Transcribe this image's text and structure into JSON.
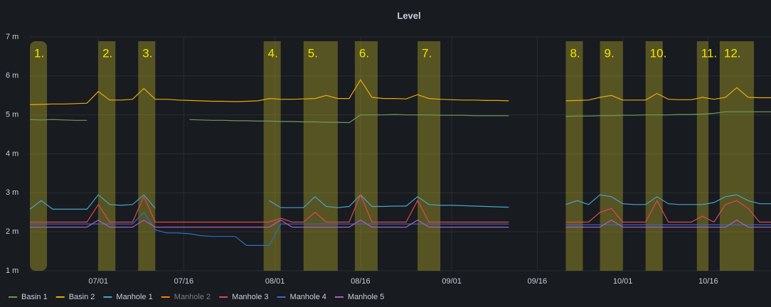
{
  "chart_data": {
    "type": "line",
    "title": "Level",
    "x": [
      "06/19",
      "06/21",
      "06/23",
      "06/25",
      "06/27",
      "06/29",
      "07/01",
      "07/03",
      "07/05",
      "07/07",
      "07/09",
      "07/11",
      "07/13",
      "07/15",
      "07/17",
      "07/19",
      "07/21",
      "07/23",
      "07/25",
      "07/27",
      "07/29",
      "07/31",
      "08/02",
      "08/04",
      "08/06",
      "08/08",
      "08/10",
      "08/12",
      "08/14",
      "08/16",
      "08/18",
      "08/20",
      "08/22",
      "08/24",
      "08/26",
      "08/28",
      "08/30",
      "09/01",
      "09/03",
      "09/05",
      "09/07",
      "09/09",
      "09/11",
      "09/13",
      "09/15",
      "09/17",
      "09/19",
      "09/21",
      "09/23",
      "09/25",
      "09/27",
      "09/29",
      "10/01",
      "10/03",
      "10/05",
      "10/07",
      "10/09",
      "10/11",
      "10/13",
      "10/15",
      "10/17",
      "10/19",
      "10/21",
      "10/23",
      "10/25",
      "10/27"
    ],
    "xlim": [
      "06/19",
      "10/27"
    ],
    "xticks": [
      "07/01",
      "07/16",
      "08/01",
      "08/16",
      "09/01",
      "09/16",
      "10/01",
      "10/16"
    ],
    "ylim": [
      1,
      7
    ],
    "yticks": [
      {
        "value": 1,
        "label": "1 m"
      },
      {
        "value": 2,
        "label": "2 m"
      },
      {
        "value": 3,
        "label": "3 m"
      },
      {
        "value": 4,
        "label": "4 m"
      },
      {
        "value": 5,
        "label": "5 m"
      },
      {
        "value": 6,
        "label": "6 m"
      },
      {
        "value": 7,
        "label": "7 m"
      }
    ],
    "grid": true,
    "legend": "bottom",
    "regions": [
      {
        "label": "1.",
        "from": "06/19",
        "to": "06/22"
      },
      {
        "label": "2.",
        "from": "07/01",
        "to": "07/04"
      },
      {
        "label": "3.",
        "from": "07/08",
        "to": "07/11"
      },
      {
        "label": "4.",
        "from": "07/30",
        "to": "08/02"
      },
      {
        "label": "5.",
        "from": "08/06",
        "to": "08/12"
      },
      {
        "label": "6.",
        "from": "08/15",
        "to": "08/19"
      },
      {
        "label": "7.",
        "from": "08/26",
        "to": "08/30"
      },
      {
        "label": "8.",
        "from": "09/21",
        "to": "09/24"
      },
      {
        "label": "9.",
        "from": "09/27",
        "to": "10/01"
      },
      {
        "label": "10.",
        "from": "10/05",
        "to": "10/08"
      },
      {
        "label": "11.",
        "from": "10/14",
        "to": "10/16"
      },
      {
        "label": "12.",
        "from": "10/18",
        "to": "10/24"
      }
    ],
    "series": [
      {
        "name": "Basin 1",
        "color": "#6f9a5d",
        "values": [
          4.88,
          4.87,
          4.88,
          4.87,
          4.86,
          4.86,
          null,
          null,
          null,
          null,
          null,
          null,
          null,
          null,
          4.88,
          4.87,
          4.86,
          4.86,
          4.85,
          4.85,
          4.84,
          4.84,
          4.83,
          4.83,
          4.82,
          4.82,
          4.81,
          4.81,
          4.8,
          5.0,
          5.0,
          5.0,
          5.01,
          5.0,
          5.0,
          5.0,
          4.99,
          4.99,
          4.99,
          4.98,
          4.98,
          4.98,
          4.98,
          null,
          null,
          null,
          null,
          4.96,
          4.97,
          4.97,
          4.98,
          4.98,
          4.99,
          4.99,
          5.0,
          5.0,
          5.0,
          5.01,
          5.01,
          5.02,
          5.04,
          5.08,
          5.08,
          5.08,
          5.08,
          5.08
        ]
      },
      {
        "name": "Basin 2",
        "color": "#e5ac0e",
        "values": [
          5.26,
          5.27,
          5.28,
          5.28,
          5.29,
          5.3,
          5.6,
          5.38,
          5.38,
          5.4,
          5.68,
          5.4,
          5.4,
          5.38,
          5.37,
          5.36,
          5.35,
          5.35,
          5.34,
          5.35,
          5.36,
          5.42,
          5.4,
          5.4,
          5.41,
          5.42,
          5.5,
          5.42,
          5.42,
          5.9,
          5.45,
          5.42,
          5.42,
          5.41,
          5.52,
          5.42,
          5.4,
          5.39,
          5.38,
          5.38,
          5.37,
          5.37,
          5.36,
          null,
          null,
          null,
          null,
          5.36,
          5.37,
          5.38,
          5.45,
          5.5,
          5.38,
          5.38,
          5.38,
          5.55,
          5.4,
          5.39,
          5.39,
          5.45,
          5.4,
          5.45,
          5.7,
          5.45,
          5.44,
          5.44
        ]
      },
      {
        "name": "Manhole 1",
        "color": "#4aa3c9",
        "values": [
          2.58,
          2.8,
          2.58,
          2.58,
          2.58,
          2.58,
          2.95,
          2.7,
          2.68,
          2.7,
          2.95,
          2.6,
          null,
          null,
          null,
          null,
          null,
          null,
          null,
          null,
          null,
          2.8,
          2.62,
          2.62,
          2.62,
          2.9,
          2.65,
          2.62,
          2.65,
          2.95,
          2.65,
          2.65,
          2.66,
          2.66,
          2.9,
          2.7,
          2.68,
          2.68,
          2.67,
          2.66,
          2.65,
          2.64,
          2.63,
          null,
          null,
          null,
          null,
          2.7,
          2.8,
          2.7,
          2.95,
          2.9,
          2.72,
          2.7,
          2.7,
          2.9,
          2.72,
          2.7,
          2.7,
          2.7,
          2.75,
          2.9,
          2.95,
          2.8,
          2.72,
          2.72
        ]
      },
      {
        "name": "Manhole 2",
        "color": "#ff780a",
        "hidden": true
      },
      {
        "name": "Manhole 3",
        "color": "#e0474f",
        "values": [
          2.25,
          2.25,
          2.25,
          2.25,
          2.25,
          2.25,
          2.7,
          2.25,
          2.25,
          2.25,
          2.9,
          2.25,
          2.25,
          2.25,
          2.25,
          2.25,
          2.25,
          2.25,
          2.25,
          2.25,
          2.25,
          2.25,
          2.35,
          2.25,
          2.25,
          2.5,
          2.25,
          2.25,
          2.25,
          2.95,
          2.25,
          2.25,
          2.25,
          2.25,
          2.8,
          2.25,
          2.25,
          2.25,
          2.25,
          2.25,
          2.25,
          2.25,
          2.25,
          null,
          null,
          null,
          null,
          2.25,
          2.25,
          2.25,
          2.5,
          2.6,
          2.25,
          2.25,
          2.25,
          2.8,
          2.25,
          2.25,
          2.25,
          2.4,
          2.25,
          2.7,
          2.8,
          2.6,
          2.25,
          2.25
        ]
      },
      {
        "name": "Manhole 4",
        "color": "#2f6fc4",
        "values": [
          2.2,
          2.2,
          2.2,
          2.2,
          2.2,
          2.2,
          2.2,
          2.2,
          2.2,
          2.2,
          2.5,
          2.05,
          1.97,
          1.97,
          1.95,
          1.9,
          1.88,
          1.88,
          1.88,
          1.65,
          1.65,
          1.65,
          2.2,
          2.2,
          2.2,
          2.2,
          2.2,
          2.2,
          2.2,
          2.2,
          2.2,
          2.2,
          2.2,
          2.2,
          2.2,
          2.2,
          2.2,
          2.2,
          2.2,
          2.2,
          2.2,
          2.2,
          2.2,
          null,
          null,
          null,
          null,
          2.18,
          2.18,
          2.18,
          2.18,
          2.18,
          2.18,
          2.18,
          2.18,
          2.18,
          2.18,
          2.18,
          2.18,
          2.18,
          2.18,
          2.18,
          2.18,
          2.18,
          2.18,
          2.18
        ]
      },
      {
        "name": "Manhole 5",
        "color": "#b05bc7",
        "values": [
          2.12,
          2.12,
          2.12,
          2.12,
          2.12,
          2.12,
          2.3,
          2.12,
          2.12,
          2.12,
          2.3,
          2.12,
          2.12,
          2.12,
          2.12,
          2.12,
          2.12,
          2.12,
          2.12,
          2.12,
          2.12,
          2.12,
          2.3,
          2.12,
          2.12,
          2.12,
          2.12,
          2.12,
          2.12,
          2.3,
          2.12,
          2.12,
          2.12,
          2.12,
          2.3,
          2.12,
          2.12,
          2.12,
          2.12,
          2.12,
          2.12,
          2.12,
          2.12,
          null,
          null,
          null,
          null,
          2.12,
          2.12,
          2.12,
          2.12,
          2.3,
          2.12,
          2.12,
          2.12,
          2.12,
          2.12,
          2.12,
          2.12,
          2.12,
          2.12,
          2.12,
          2.3,
          2.12,
          2.12,
          2.12
        ]
      }
    ]
  }
}
